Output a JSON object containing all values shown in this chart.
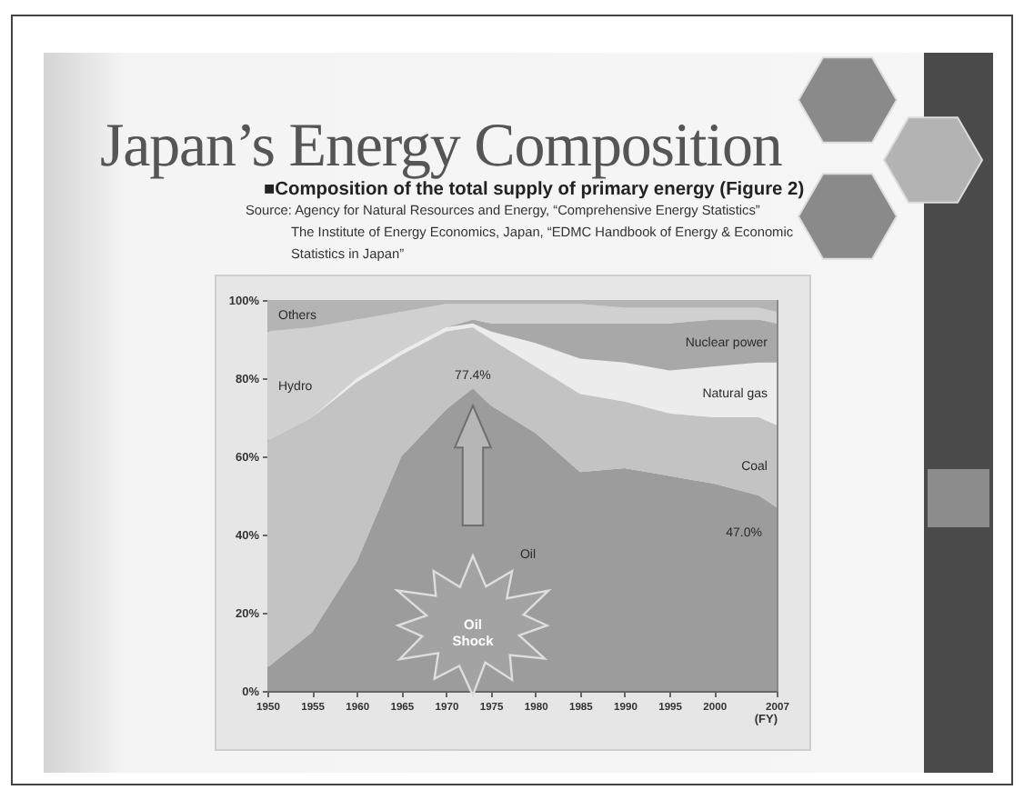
{
  "chart_data": {
    "type": "area",
    "title": "Japan’s Energy Composition",
    "subtitle": "■Composition of the total supply of primary energy (Figure 2)",
    "xlabel": "(FY)",
    "x": [
      1950,
      1955,
      1960,
      1965,
      1970,
      1973,
      1975,
      1980,
      1985,
      1990,
      1995,
      2000,
      2005,
      2007
    ],
    "xlim": [
      1950,
      2007
    ],
    "xticks": [
      1950,
      1955,
      1960,
      1965,
      1970,
      1975,
      1980,
      1985,
      1990,
      1995,
      2000,
      2007
    ],
    "ylim": [
      0,
      100
    ],
    "yticks": [
      {
        "value": 0,
        "label": "0%"
      },
      {
        "value": 20,
        "label": "20%"
      },
      {
        "value": 40,
        "label": "40%"
      },
      {
        "value": 60,
        "label": "60%"
      },
      {
        "value": 80,
        "label": "80%"
      },
      {
        "value": 100,
        "label": "100%"
      }
    ],
    "stacked": true,
    "series": [
      {
        "name": "Oil",
        "color": "#9c9c9c",
        "values": [
          6,
          15,
          33,
          60,
          72,
          77.4,
          73,
          66,
          56,
          57,
          55,
          53,
          50,
          47.0
        ],
        "value_labels": [
          null,
          null,
          null,
          null,
          null,
          "77.4%",
          null,
          null,
          null,
          null,
          null,
          null,
          null,
          "47.0%"
        ]
      },
      {
        "name": "Coal",
        "color": "#c3c3c3",
        "values": [
          58,
          55,
          46,
          26,
          20,
          15.6,
          17,
          17,
          20,
          17,
          16,
          17,
          20,
          21
        ]
      },
      {
        "name": "Natural gas",
        "color": "#ececec",
        "values": [
          0,
          0,
          1,
          1,
          1,
          1,
          2,
          6,
          9,
          10,
          11,
          13,
          14,
          16
        ]
      },
      {
        "name": "Nuclear power",
        "color": "#a8a8a8",
        "values": [
          0,
          0,
          0,
          0,
          0,
          1,
          2,
          5,
          9,
          10,
          12,
          12,
          11,
          10
        ]
      },
      {
        "name": "Hydro",
        "color": "#d0d0d0",
        "values": [
          28,
          23,
          15,
          10,
          6,
          4,
          5,
          5,
          5,
          4,
          4,
          3,
          3,
          3
        ]
      },
      {
        "name": "Others",
        "color": "#b4b4b4",
        "values": [
          8,
          7,
          5,
          3,
          1,
          1,
          1,
          1,
          1,
          2,
          2,
          2,
          2,
          3
        ]
      }
    ],
    "annotations": [
      "Source: Agency for Natural Resources and Energy, “Comprehensive Energy Statistics”",
      "The Institute of Energy Economics, Japan, “EDMC Handbook of Energy & Economic Statistics in Japan”",
      "Oil Shock"
    ]
  }
}
